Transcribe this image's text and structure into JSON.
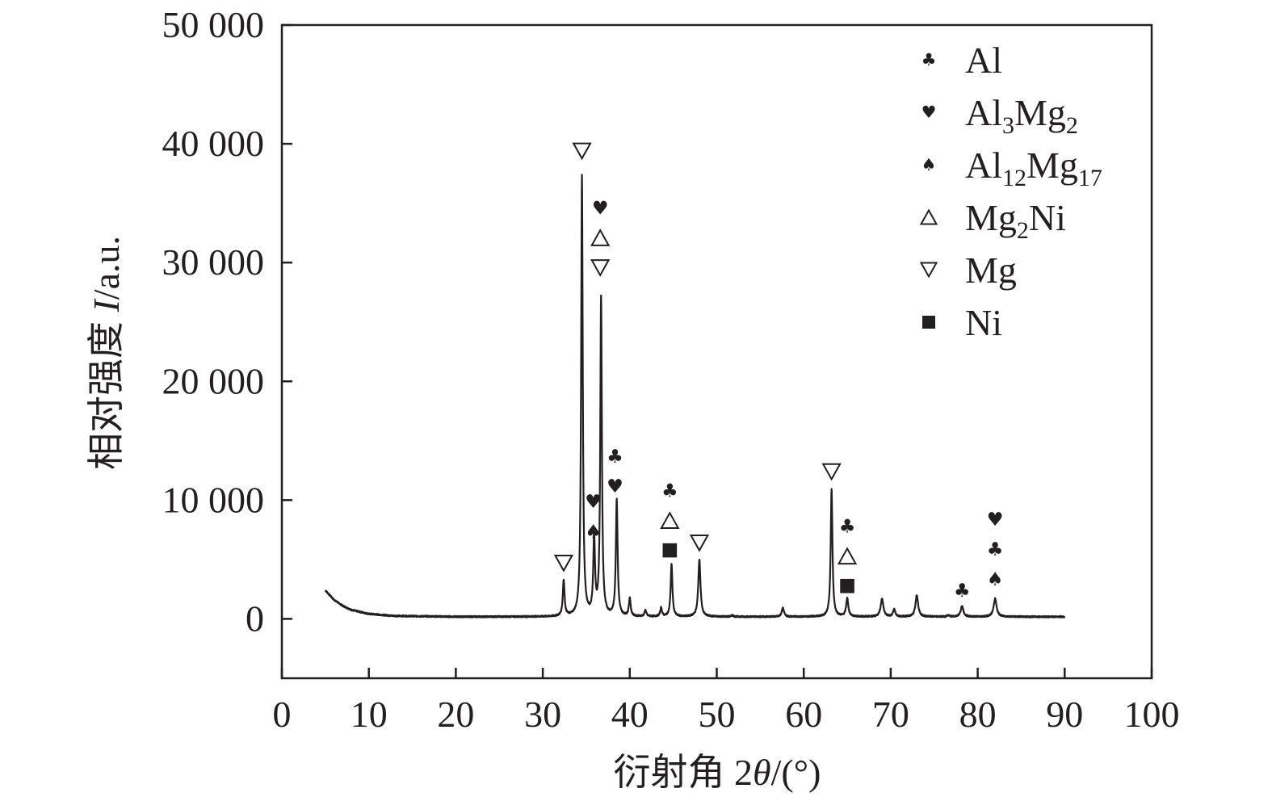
{
  "chart_data": {
    "type": "line",
    "xlabel_prefix": "衍射角 2",
    "xlabel_var": "θ",
    "xlabel_suffix": "/(°)",
    "ylabel_prefix": "相对强度 ",
    "ylabel_var": "I",
    "ylabel_suffix": "/a.u.",
    "xlim": [
      0,
      100
    ],
    "ylim": [
      -5000,
      50000
    ],
    "x_ticks": [
      0,
      10,
      20,
      30,
      40,
      50,
      60,
      70,
      80,
      90,
      100
    ],
    "y_ticks": [
      0,
      10000,
      20000,
      30000,
      40000,
      50000
    ],
    "x_tick_labels": [
      "0",
      "10",
      "20",
      "30",
      "40",
      "50",
      "60",
      "70",
      "80",
      "90",
      "100"
    ],
    "y_tick_labels": [
      "0",
      "10 000",
      "20 000",
      "30 000",
      "40 000",
      "50 000"
    ],
    "grid": false,
    "legend_position": "top-right",
    "legend": [
      {
        "phase": "Al",
        "base": "Al",
        "parts": [],
        "icon": "club-icon"
      },
      {
        "phase": "Al3Mg2",
        "base": "Al",
        "parts": [
          [
            "3",
            "sub"
          ],
          [
            "Mg",
            "n"
          ],
          [
            "2",
            "sub"
          ]
        ],
        "icon": "heart-icon"
      },
      {
        "phase": "Al12Mg17",
        "base": "Al",
        "parts": [
          [
            "12",
            "sub"
          ],
          [
            "Mg",
            "n"
          ],
          [
            "17",
            "sub"
          ]
        ],
        "icon": "spade-icon"
      },
      {
        "phase": "Mg2Ni",
        "base": "Mg",
        "parts": [
          [
            "2",
            "sub"
          ],
          [
            "Ni",
            "n"
          ]
        ],
        "icon": "triangle-up-icon"
      },
      {
        "phase": "Mg",
        "base": "Mg",
        "parts": [],
        "icon": "triangle-down-icon"
      },
      {
        "phase": "Ni",
        "base": "Ni",
        "parts": [],
        "icon": "square-icon"
      }
    ],
    "series": [
      {
        "baseline": [
          [
            5,
            2400
          ],
          [
            6,
            1600
          ],
          [
            7,
            1100
          ],
          [
            8,
            750
          ],
          [
            10,
            420
          ],
          [
            13,
            250
          ],
          [
            20,
            180
          ],
          [
            30,
            180
          ],
          [
            90,
            180
          ]
        ],
        "peaks": [
          {
            "x": 32.4,
            "y": 3200,
            "w": 0.12
          },
          {
            "x": 34.5,
            "y": 37300,
            "w": 0.11
          },
          {
            "x": 35.9,
            "y": 6600,
            "w": 0.12
          },
          {
            "x": 36.7,
            "y": 27000,
            "w": 0.11
          },
          {
            "x": 38.5,
            "y": 10000,
            "w": 0.12
          },
          {
            "x": 40.0,
            "y": 1700,
            "w": 0.12
          },
          {
            "x": 41.8,
            "y": 700,
            "w": 0.12
          },
          {
            "x": 43.6,
            "y": 900,
            "w": 0.12
          },
          {
            "x": 44.8,
            "y": 4600,
            "w": 0.12
          },
          {
            "x": 48.0,
            "y": 5000,
            "w": 0.15
          },
          {
            "x": 51.8,
            "y": 300,
            "w": 0.12
          },
          {
            "x": 57.6,
            "y": 900,
            "w": 0.15
          },
          {
            "x": 61.0,
            "y": 200,
            "w": 0.12
          },
          {
            "x": 63.2,
            "y": 10900,
            "w": 0.12
          },
          {
            "x": 65.0,
            "y": 1700,
            "w": 0.15
          },
          {
            "x": 69.0,
            "y": 1700,
            "w": 0.18
          },
          {
            "x": 70.4,
            "y": 800,
            "w": 0.15
          },
          {
            "x": 73.0,
            "y": 2000,
            "w": 0.18
          },
          {
            "x": 76.6,
            "y": 300,
            "w": 0.15
          },
          {
            "x": 78.2,
            "y": 1100,
            "w": 0.18
          },
          {
            "x": 82.0,
            "y": 1700,
            "w": 0.2
          }
        ]
      }
    ],
    "peak_labels": [
      {
        "x": 32.4,
        "stack": [
          "triangle-down-icon"
        ],
        "y_top": 4700
      },
      {
        "x": 34.5,
        "stack": [
          "triangle-down-icon"
        ],
        "y_top": 39400
      },
      {
        "x": 36.6,
        "stack": [
          "heart-icon",
          "triangle-up-icon",
          "triangle-down-icon"
        ],
        "y_top": 34600
      },
      {
        "x": 35.8,
        "stack": [
          "heart-icon",
          "spade-icon"
        ],
        "y_top": 9900
      },
      {
        "x": 38.3,
        "stack": [
          "club-icon",
          "heart-icon"
        ],
        "y_top": 13700
      },
      {
        "x": 44.6,
        "stack": [
          "club-icon",
          "triangle-up-icon",
          "square-icon"
        ],
        "y_top": 10800
      },
      {
        "x": 48.0,
        "stack": [
          "triangle-down-icon"
        ],
        "y_top": 6400
      },
      {
        "x": 63.2,
        "stack": [
          "triangle-down-icon"
        ],
        "y_top": 12400
      },
      {
        "x": 65.0,
        "stack": [
          "club-icon",
          "triangle-up-icon",
          "square-icon"
        ],
        "y_top": 7800
      },
      {
        "x": 78.2,
        "stack": [
          "club-icon"
        ],
        "y_top": 2400
      },
      {
        "x": 82.0,
        "stack": [
          "heart-icon",
          "club-icon",
          "spade-icon"
        ],
        "y_top": 8400
      }
    ]
  }
}
